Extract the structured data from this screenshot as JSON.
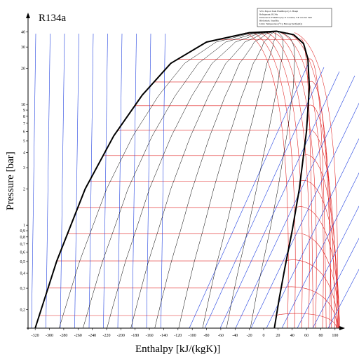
{
  "chart_data": {
    "type": "line",
    "title": "R134a",
    "xlabel": "Enthalpy [kJ/(kgK)]",
    "ylabel": "Pressure [bar]",
    "xlim": [
      -330,
      110
    ],
    "ylim": [
      0.14,
      42
    ],
    "yscale": "log",
    "x_ticks": [
      "-320",
      "-300",
      "-280",
      "-260",
      "-240",
      "-220",
      "-200",
      "-180",
      "-160",
      "-140",
      "-120",
      "-100",
      "-80",
      "-60",
      "-40",
      "-20",
      "0",
      "20",
      "40",
      "60",
      "80",
      "100"
    ],
    "y_ticks": [
      "0,2",
      "0,3",
      "0,4",
      "0,5",
      "0,6",
      "0,7",
      "0,8",
      "0,9",
      "1",
      "2",
      "3",
      "4",
      "5",
      "6",
      "7",
      "8",
      "9",
      "10",
      "20",
      "30",
      "40"
    ],
    "info_box": [
      "SVG Export from FluidProp by J. Haupt",
      "Refrigerant: R134a",
      "Datasource: FluidProp by P. Colonna, T.P. van der Stelt",
      "Bibliothek: StanMix",
      "Units: Temperature [°C], Entropy [kJ/(kgK)]"
    ],
    "series": [
      {
        "values": [
          [
            -320,
            0.14
          ],
          [
            -290,
            0.5
          ],
          [
            -250,
            2
          ],
          [
            -210,
            5.5
          ],
          [
            -170,
            12
          ],
          [
            -130,
            22
          ],
          [
            -80,
            33
          ],
          [
            -20,
            39.5
          ],
          [
            18,
            40.6
          ],
          [
            42,
            38
          ],
          [
            56,
            32
          ],
          [
            62,
            24
          ],
          [
            64,
            14
          ],
          [
            60,
            6
          ],
          [
            50,
            2
          ],
          [
            40,
            0.9
          ],
          [
            30,
            0.45
          ],
          [
            22,
            0.25
          ],
          [
            15,
            0.14
          ]
        ]
      }
    ],
    "grid": false
  },
  "colors": {
    "saturation": "#000000",
    "isotherm": "#e02020",
    "isentrope": "#2040e0",
    "quality": "#000000"
  }
}
